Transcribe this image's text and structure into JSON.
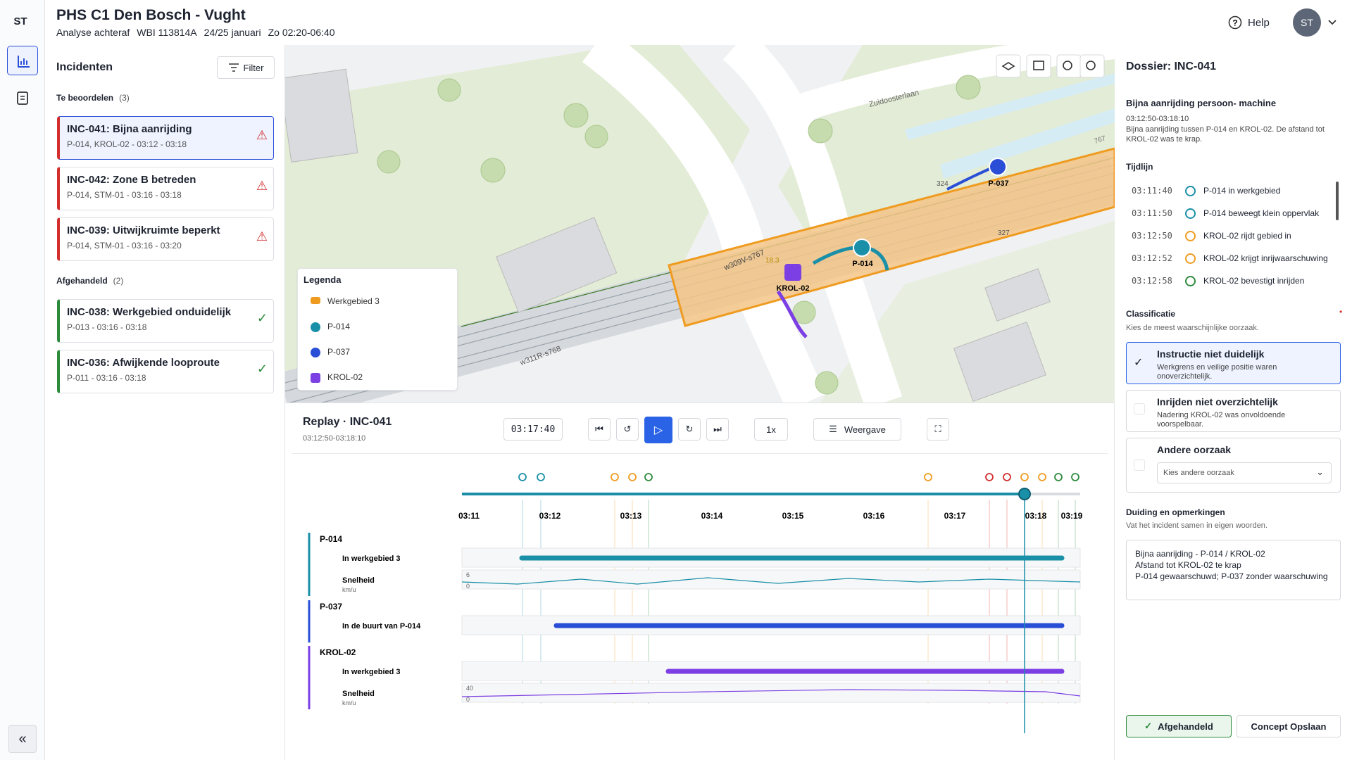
{
  "sidebar": {
    "initials": "ST"
  },
  "header": {
    "title": "PHS C1 Den Bosch - Vught",
    "subtitle": [
      "Analyse achteraf",
      "WBI 113814A",
      "24/25 januari",
      "Zo 02:20-06:40"
    ],
    "help": "Help",
    "user": "ST"
  },
  "incidents": {
    "title": "Incidenten",
    "filter": "Filter",
    "groups": [
      {
        "label": "Te beoordelen",
        "count": "(3)",
        "items": [
          {
            "title": "INC-041: Bijna aanrijding",
            "meta": "P-014, KROL-02 - 03:12 - 03:18"
          },
          {
            "title": "INC-042: Zone B betreden",
            "meta": "P-014, STM-01 - 03:16 - 03:18"
          },
          {
            "title": "INC-039: Uitwijkruimte beperkt",
            "meta": "P-014, STM-01 - 03:16 - 03:20"
          }
        ]
      },
      {
        "label": "Afgehandeld",
        "count": "(2)",
        "items": [
          {
            "title": "INC-038: Werkgebied onduidelijk",
            "meta": "P-013 - 03:16 - 03:18"
          },
          {
            "title": "INC-036: Afwijkende looproute",
            "meta": "P-011 - 03:16 - 03:18"
          }
        ]
      }
    ]
  },
  "map": {
    "labels": {
      "street": "Zuidoosterlaan",
      "track1": "w309V-s767",
      "track2": "w311R-s768",
      "km1": "324",
      "km2": "327",
      "km3": "767",
      "speed": "18.3",
      "p037": "P-037",
      "p014": "P-014",
      "krol": "KROL-02"
    },
    "legend": {
      "title": "Legenda",
      "items": [
        "Werkgebied 3",
        "P-014",
        "P-037",
        "KROL-02"
      ]
    }
  },
  "replay": {
    "title": "Replay · INC-041",
    "range": "03:12:50-03:18:10",
    "time": "03:17:40",
    "speed": "1x",
    "view": "Weergave",
    "ticks": [
      "03:11",
      "03:12",
      "03:13",
      "03:14",
      "03:15",
      "03:16",
      "03:17",
      "03:18",
      "03:19"
    ],
    "rows": [
      {
        "name": "P-014",
        "tracks": [
          {
            "label": "In werkgebied 3"
          },
          {
            "label": "Snelheid",
            "unit": "km/u",
            "max": "6",
            "min": "0"
          }
        ]
      },
      {
        "name": "P-037",
        "tracks": [
          {
            "label": "In de buurt van P-014"
          }
        ]
      },
      {
        "name": "KROL-02",
        "tracks": [
          {
            "label": "In werkgebied 3"
          },
          {
            "label": "Snelheid",
            "unit": "km/u",
            "max": "40",
            "min": "0"
          }
        ]
      }
    ]
  },
  "dossier": {
    "title": "Dossier: INC-041",
    "heading": "Bijna aanrijding persoon- machine",
    "range": "03:12:50-03:18:10",
    "description": "Bijna aanrijding tussen P-014 en KROL-02. De afstand tot KROL-02 was te krap.",
    "timeline_title": "Tijdlijn",
    "events": [
      {
        "time": "03:11:40",
        "text": "P-014 in werkgebied"
      },
      {
        "time": "03:11:50",
        "text": "P-014 beweegt klein oppervlak"
      },
      {
        "time": "03:12:50",
        "text": "KROL-02 rijdt gebied in"
      },
      {
        "time": "03:12:52",
        "text": "KROL-02 krijgt inrijwaarschuwing"
      },
      {
        "time": "03:12:58",
        "text": "KROL-02 bevestigt inrijden"
      }
    ],
    "classification": {
      "title": "Classificatie",
      "hint": "Kies de meest waarschijnlijke oorzaak.",
      "options": [
        {
          "title": "Instructie niet duidelijk",
          "desc": "Werkgrens en veilige positie waren onoverzichtelijk."
        },
        {
          "title": "Inrijden niet overzichtelijk",
          "desc": "Nadering KROL-02 was onvoldoende voorspelbaar."
        },
        {
          "title": "Andere oorzaak",
          "placeholder": "Kies andere oorzaak"
        }
      ]
    },
    "notes": {
      "title": "Duiding en opmerkingen",
      "hint": "Vat het incident samen in eigen woorden.",
      "lines": [
        "Bijna aanrijding - P-014 / KROL-02",
        "Afstand tot KROL-02 te krap",
        "P-014 gewaarschuwd; P-037 zonder waarschuwing"
      ]
    },
    "buttons": {
      "done": "Afgehandeld",
      "save": "Concept Opslaan"
    }
  }
}
